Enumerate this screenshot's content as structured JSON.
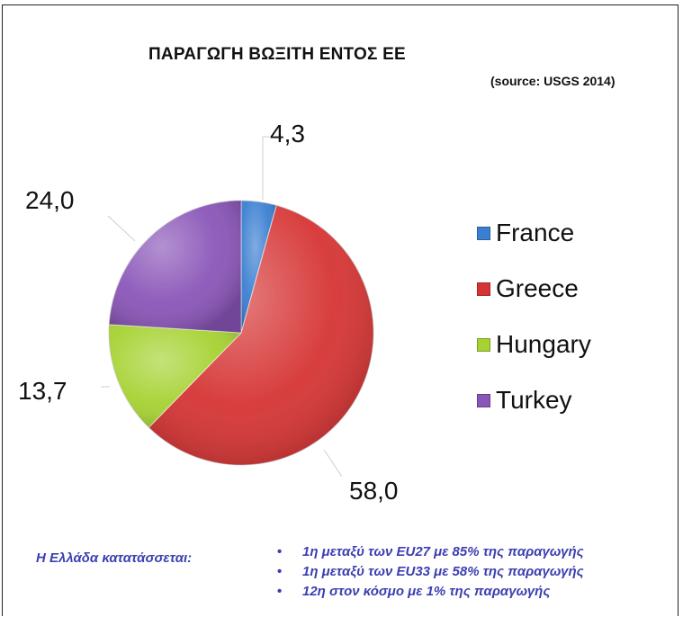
{
  "chart_data": {
    "type": "pie",
    "title": "ΠΑΡΑΓΩΓΗ ΒΩΞΙΤΗ ΕΝΤΟΣ ΕΕ",
    "subtitle": "(source: USGS 2014)",
    "categories": [
      "France",
      "Greece",
      "Hungary",
      "Turkey"
    ],
    "values": [
      4.3,
      58.0,
      13.7,
      24.0
    ],
    "value_labels": [
      "4,3",
      "58,0",
      "13,7",
      "24,0"
    ],
    "colors": [
      "#3a7fd1",
      "#d63434",
      "#a6d232",
      "#8a55b8"
    ],
    "legend_position": "right"
  },
  "notes": {
    "heading": "Η Ελλάδα κατατάσσεται:",
    "bullet_symbol": "•",
    "items": [
      "1η μεταξύ των EU27 με 85% της παραγωγής",
      "1η μεταξύ των  EU33 με 58% της παραγωγής",
      "12η στον κόσμο με 1% της παραγωγής"
    ]
  }
}
